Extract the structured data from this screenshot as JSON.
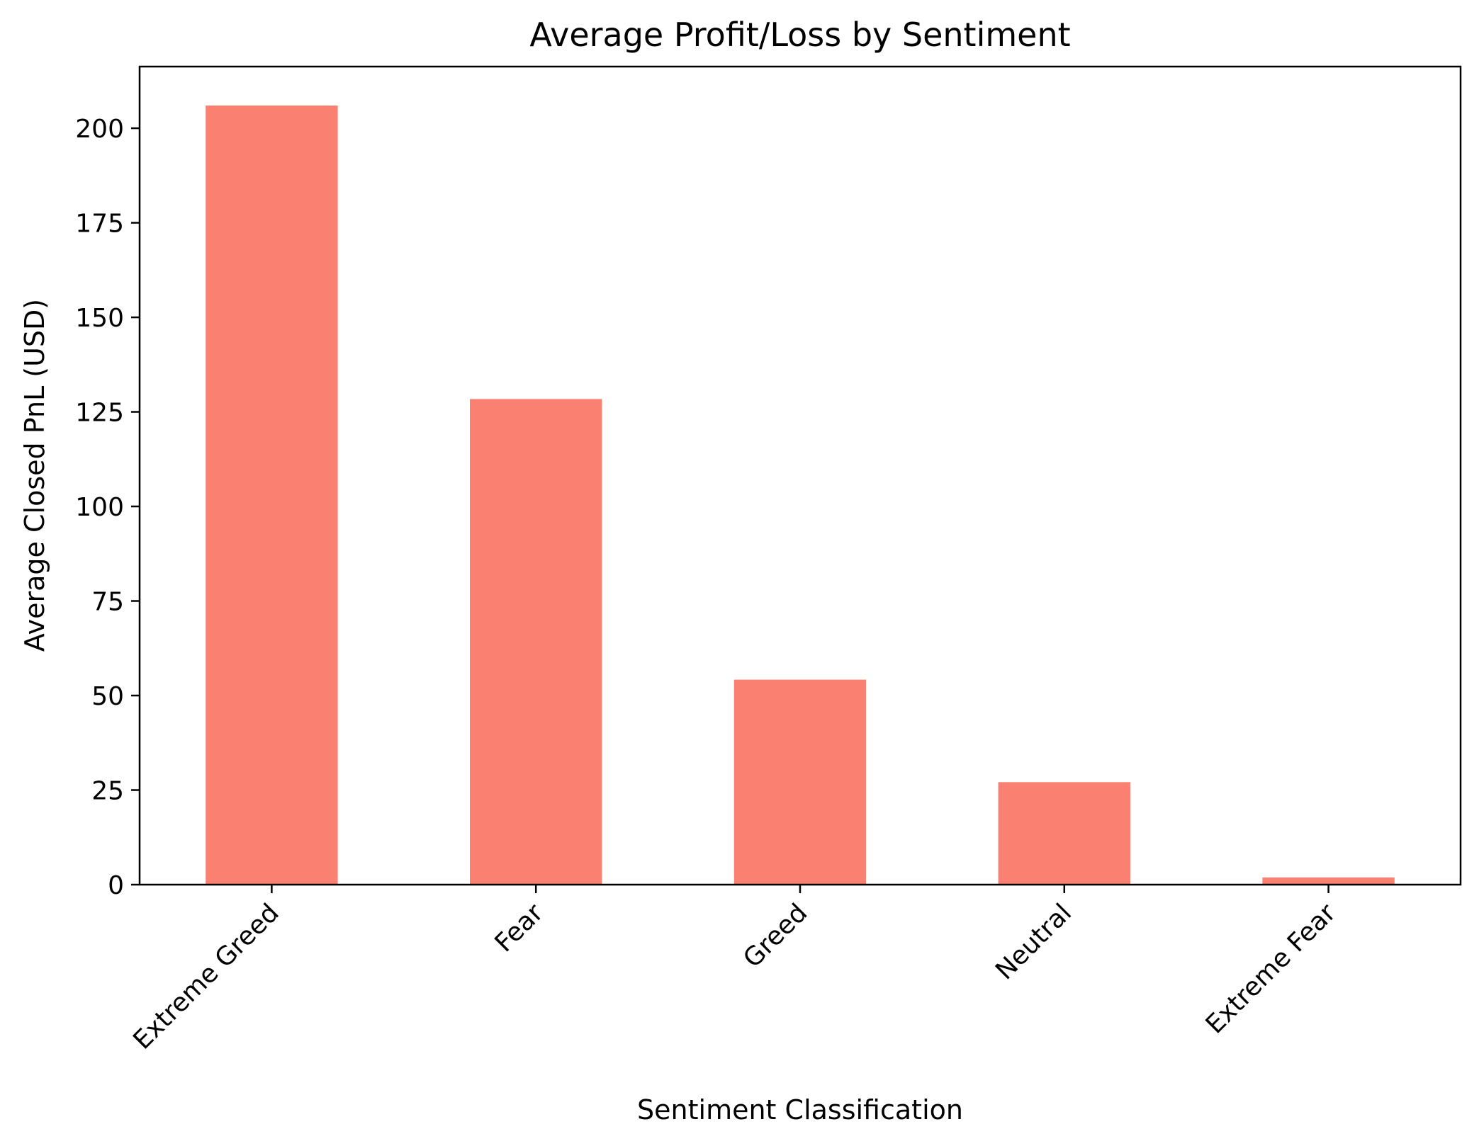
{
  "chart_data": {
    "type": "bar",
    "title": "Average Profit/Loss by Sentiment",
    "xlabel": "Sentiment Classification",
    "ylabel": "Average Closed PnL (USD)",
    "categories": [
      "Extreme Greed",
      "Fear",
      "Greed",
      "Neutral",
      "Extreme Fear"
    ],
    "values": [
      206.0,
      128.4,
      54.2,
      27.1,
      1.9
    ],
    "ylim": [
      0,
      216.3
    ],
    "yticks": [
      0,
      25,
      50,
      75,
      100,
      125,
      150,
      175,
      200
    ],
    "bar_color": "#FA8072",
    "grid": false,
    "legend": false
  }
}
